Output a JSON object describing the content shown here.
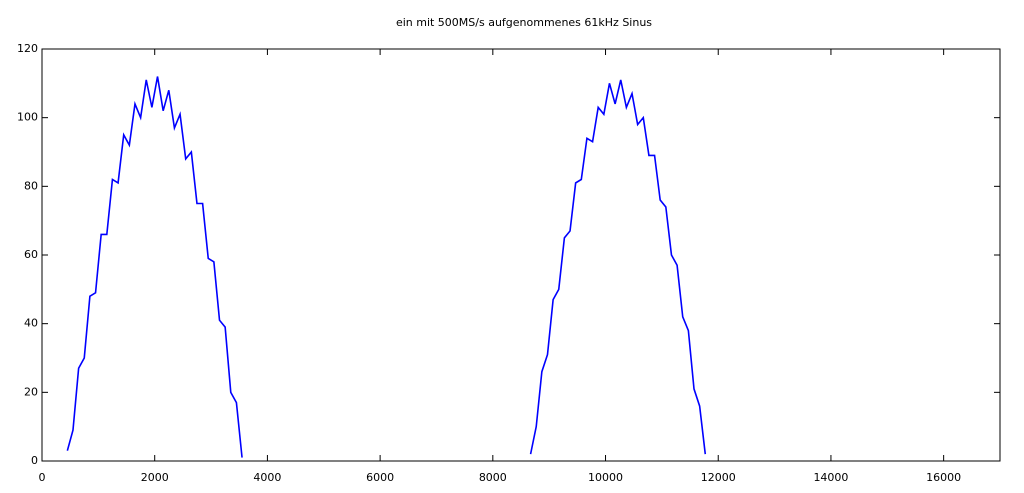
{
  "chart_data": {
    "type": "line",
    "title": "ein mit 500MS/s aufgenommenes 61kHz Sinus",
    "x": [
      450,
      550,
      650,
      750,
      850,
      950,
      1050,
      1150,
      1250,
      1350,
      1450,
      1550,
      1650,
      1750,
      1850,
      1950,
      2050,
      2150,
      2250,
      2350,
      2450,
      2550,
      2650,
      2750,
      2850,
      2950,
      3050,
      3150,
      3250,
      3350,
      3450,
      3550,
      6000,
      8670,
      8770,
      8870,
      8970,
      9070,
      9170,
      9270,
      9370,
      9470,
      9570,
      9670,
      9770,
      9870,
      9970,
      10070,
      10170,
      10270,
      10370,
      10470,
      10570,
      10670,
      10770,
      10870,
      10970,
      11070,
      11170,
      11270,
      11370,
      11470,
      11570,
      11670,
      11770
    ],
    "series": [
      {
        "color": "#0000ff",
        "values": [
          3,
          9,
          27,
          30,
          48,
          49,
          66,
          66,
          82,
          81,
          95,
          92,
          104,
          100,
          111,
          103,
          112,
          102,
          108,
          97,
          101,
          88,
          90,
          75,
          75,
          59,
          58,
          41,
          39,
          20,
          17,
          1,
          null,
          2,
          10,
          26,
          31,
          47,
          50,
          65,
          67,
          81,
          82,
          94,
          93,
          103,
          101,
          110,
          104,
          111,
          103,
          107,
          98,
          100,
          89,
          89,
          76,
          74,
          60,
          57,
          42,
          38,
          21,
          16,
          2
        ]
      }
    ],
    "xlim": [
      0,
      17000
    ],
    "ylim": [
      0,
      120
    ],
    "xticks": [
      0,
      2000,
      4000,
      6000,
      8000,
      10000,
      12000,
      14000,
      16000
    ],
    "yticks": [
      0,
      20,
      40,
      60,
      80,
      100,
      120
    ]
  }
}
